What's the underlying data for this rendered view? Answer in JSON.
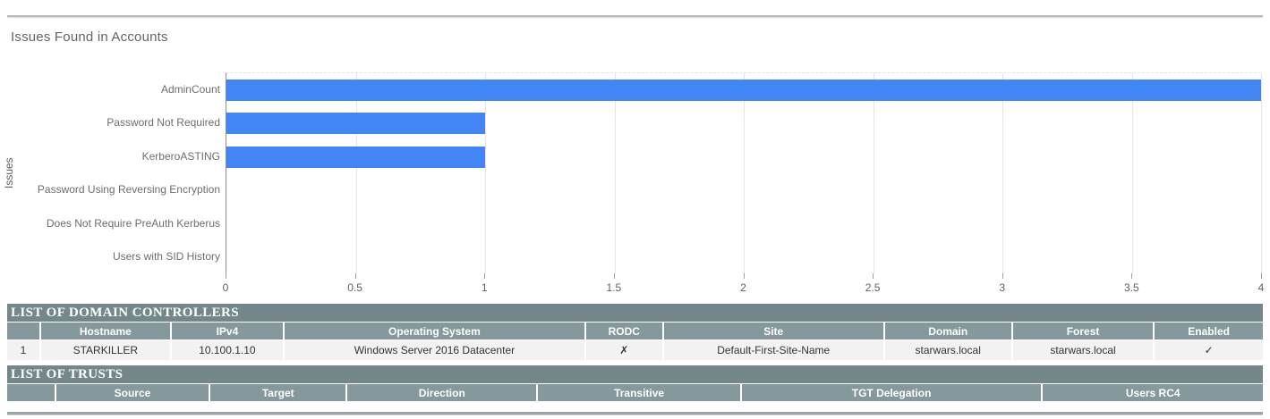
{
  "page": {
    "title": "Issues Found in Accounts"
  },
  "colors": {
    "bar_color": "#4285F4",
    "section_header_bg": "#74888B",
    "table_header_bg": "#85989B",
    "table_row_bg": "#F2F2F2"
  },
  "chart_data": {
    "type": "bar",
    "orientation": "horizontal",
    "title": "Issues Found in Accounts",
    "xlabel": "",
    "ylabel": "Issues",
    "categories": [
      "AdminCount",
      "Password Not Required",
      "KerberoASTING",
      "Password Using Reversing Encryption",
      "Does Not Require PreAuth Kerberus",
      "Users with SID History"
    ],
    "values": [
      4,
      1,
      1,
      0,
      0,
      0
    ],
    "xlim": [
      0,
      4
    ],
    "xticks": [
      "0",
      "0.5",
      "1",
      "1.5",
      "2",
      "2.5",
      "3",
      "3.5",
      "4"
    ],
    "grid": true,
    "legend": "none"
  },
  "tables": {
    "domain_controllers": {
      "section_title": "LIST OF DOMAIN CONTROLLERS",
      "headers": [
        "",
        "Hostname",
        "IPv4",
        "Operating System",
        "RODC",
        "Site",
        "Domain",
        "Forest",
        "Enabled"
      ],
      "rows": [
        [
          "1",
          "STARKILLER",
          "10.100.1.10",
          "Windows Server 2016 Datacenter",
          "✗",
          "Default-First-Site-Name",
          "starwars.local",
          "starwars.local",
          "✓"
        ]
      ]
    },
    "trusts": {
      "section_title": "LIST OF TRUSTS",
      "headers": [
        "",
        "Source",
        "Target",
        "Direction",
        "Transitive",
        "TGT Delegation",
        "Users RC4"
      ],
      "rows": []
    }
  }
}
